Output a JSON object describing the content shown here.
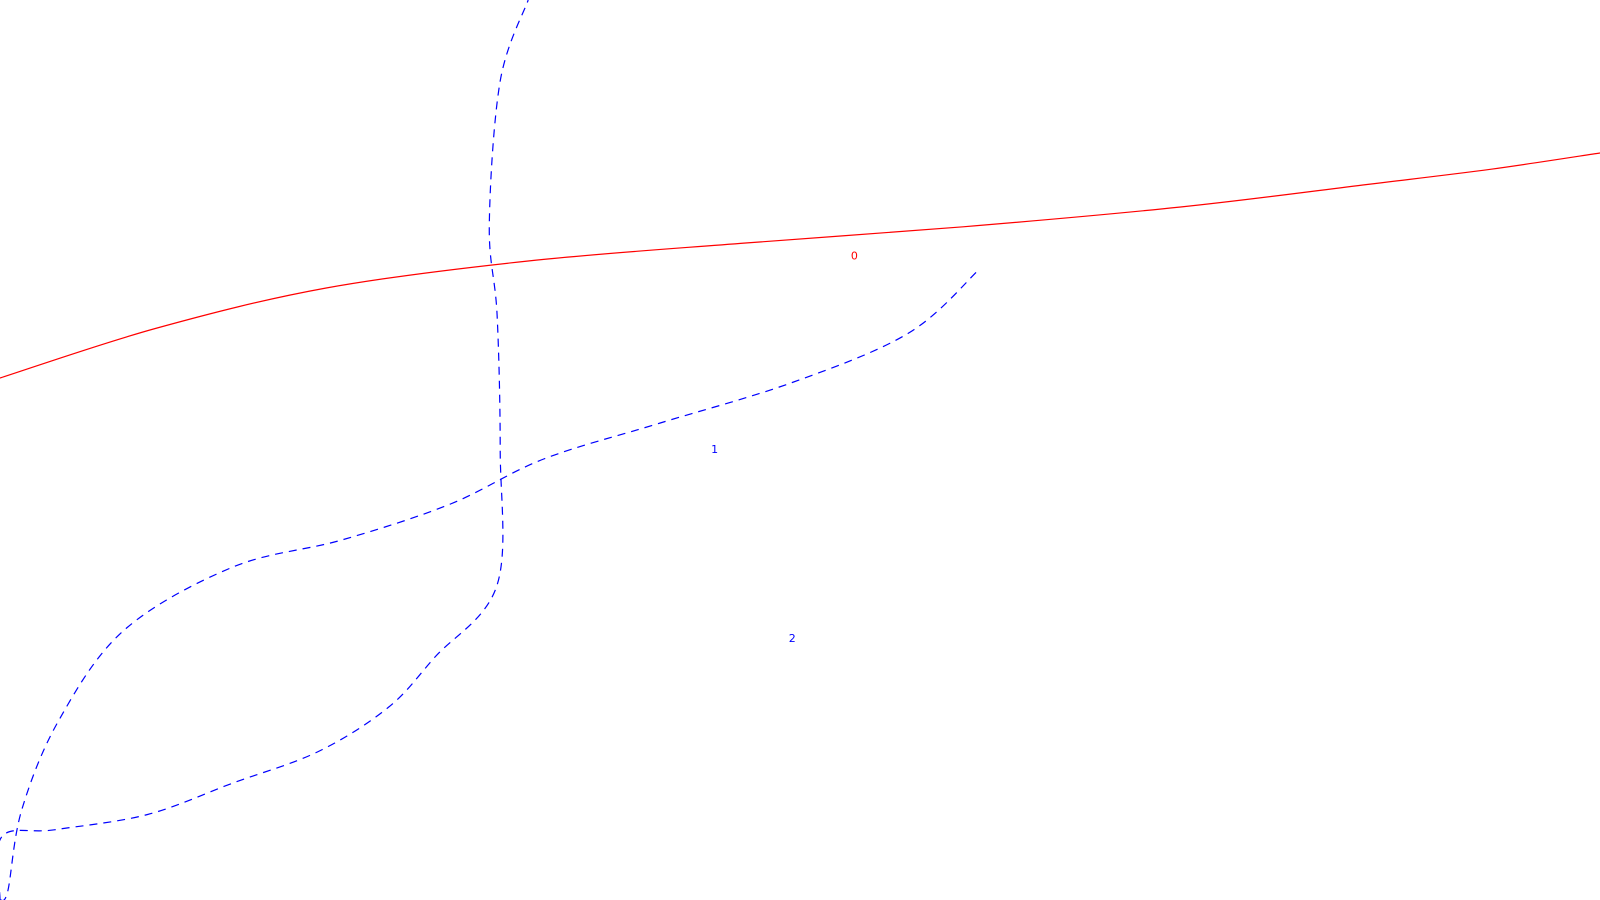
{
  "chart_data": {
    "type": "contour",
    "title": "",
    "xlabel": "",
    "ylabel": "",
    "grid": false,
    "legend": "none",
    "series": [
      {
        "level": "2",
        "label": "2",
        "color": "#0000ff",
        "style": "dashed",
        "points": [
          [
            0.0,
            0.0
          ],
          [
            0.1,
            70.0
          ],
          [
            3.5,
            78.0
          ],
          [
            9.5,
            95.0
          ],
          [
            15.0,
            130.0
          ],
          [
            20.5,
            165.0
          ],
          [
            25.0,
            214.0
          ],
          [
            28.0,
            270.0
          ],
          [
            32.0,
            350.0
          ],
          [
            32.2,
            500.0
          ],
          [
            32.0,
            650.0
          ],
          [
            31.5,
            750.0
          ],
          [
            32.2,
            910.0
          ],
          [
            34.0,
            1000.0
          ]
        ]
      },
      {
        "level": "1",
        "label": "1",
        "color": "#0000ff",
        "style": "dashed",
        "points": [
          [
            0.0,
            0.0
          ],
          [
            0.5,
            10.0
          ],
          [
            1.4,
            100.0
          ],
          [
            3.8,
            200.0
          ],
          [
            8.0,
            300.0
          ],
          [
            15.0,
            370.0
          ],
          [
            22.0,
            400.0
          ],
          [
            29.0,
            440.0
          ],
          [
            35.0,
            490.0
          ],
          [
            42.5,
            530.0
          ],
          [
            51.0,
            575.0
          ],
          [
            58.5,
            630.0
          ],
          [
            63.0,
            700.0
          ]
        ]
      },
      {
        "level": "0",
        "label": "0",
        "color": "#ff0000",
        "style": "solid",
        "points": [
          [
            0.0,
            580.0
          ],
          [
            10.0,
            635.0
          ],
          [
            21.0,
            680.0
          ],
          [
            34.0,
            710.0
          ],
          [
            48.0,
            730.0
          ],
          [
            62.0,
            748.0
          ],
          [
            76.0,
            770.0
          ],
          [
            88.0,
            795.0
          ],
          [
            96.0,
            812.0
          ],
          [
            103.0,
            830.0
          ]
        ]
      }
    ],
    "labels": [
      {
        "text": "2",
        "x": 51.0,
        "y": 290.0,
        "color": "#0000ff"
      },
      {
        "text": "1",
        "x": 46.0,
        "y": 500.0,
        "color": "#0000ff"
      },
      {
        "text": "0",
        "x": 55.0,
        "y": 715.0,
        "color": "#ff0000"
      }
    ],
    "xlim": [
      0,
      103
    ],
    "ylim": [
      0,
      1000
    ]
  }
}
